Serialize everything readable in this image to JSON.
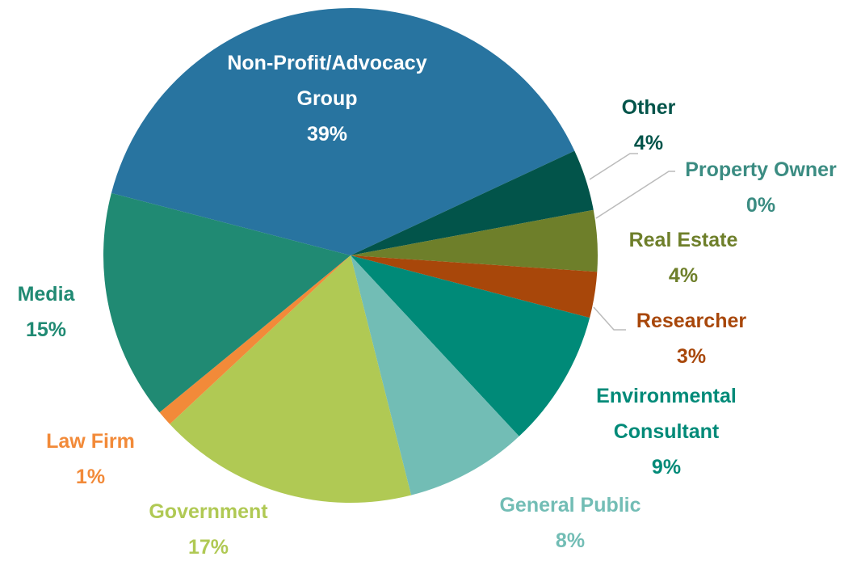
{
  "chart_data": {
    "type": "pie",
    "categories": [
      "Non-Profit/Advocacy Group",
      "Other",
      "Property Owner",
      "Real Estate",
      "Researcher",
      "Environmental Consultant",
      "General Public",
      "Government",
      "Law Firm",
      "Media"
    ],
    "values": [
      39,
      4,
      0,
      4,
      3,
      9,
      8,
      17,
      1,
      15
    ],
    "value_labels": [
      "39%",
      "4%",
      "0%",
      "4%",
      "3%",
      "9%",
      "8%",
      "17%",
      "1%",
      "15%"
    ],
    "colors": [
      "#2874a0",
      "#02544a",
      "#3b8c82",
      "#6e7f2a",
      "#a8470a",
      "#008a78",
      "#72bdb5",
      "#b0c954",
      "#f28a39",
      "#208a73"
    ]
  }
}
